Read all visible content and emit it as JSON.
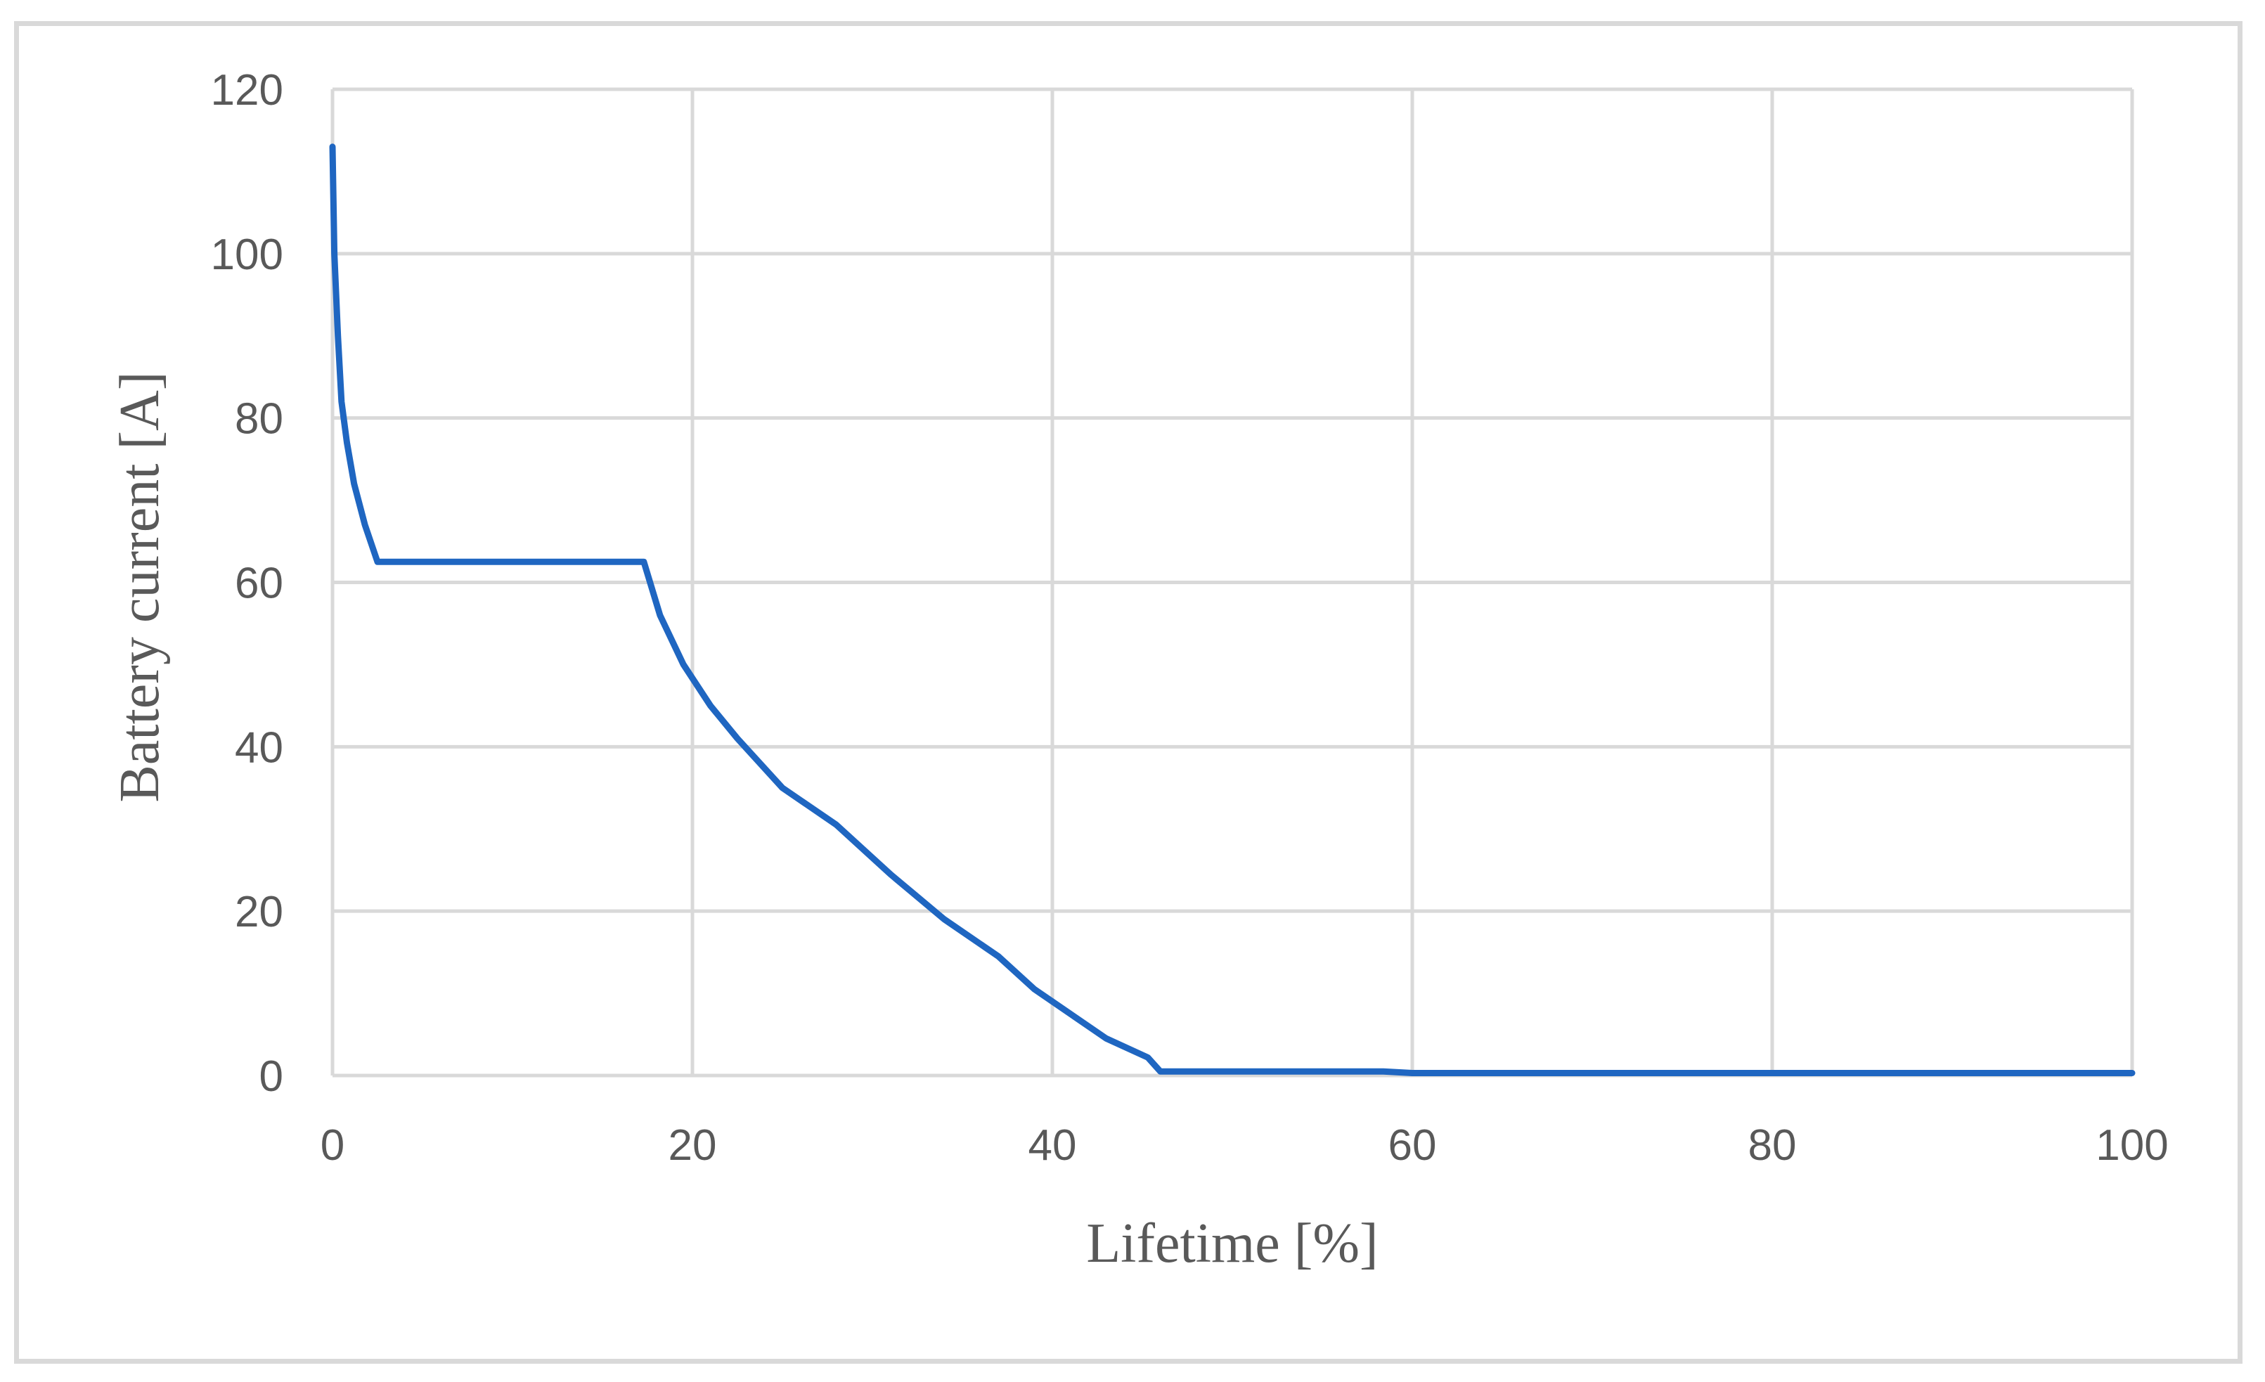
{
  "chart_data": {
    "type": "line",
    "title": "",
    "xlabel": "Lifetime [%]",
    "ylabel": "Battery current [A]",
    "xlim": [
      0,
      100
    ],
    "ylim": [
      0,
      120
    ],
    "x_ticks": [
      "0",
      "20",
      "40",
      "60",
      "80",
      "100"
    ],
    "y_ticks": [
      "0",
      "20",
      "40",
      "60",
      "80",
      "100",
      "120"
    ],
    "grid": true,
    "legend": "none",
    "colors": {
      "series": "#1f66c1",
      "grid": "#d9d9d9",
      "text": "#595959",
      "frame": "#d9d9d9"
    },
    "series": [
      {
        "x": [
          0,
          0.1,
          0.3,
          0.5,
          0.8,
          1.2,
          1.8,
          2.5,
          10,
          17.3,
          18.2,
          19.5,
          21,
          22.5,
          25,
          28,
          31,
          34,
          37,
          39,
          41,
          43,
          45.3,
          46,
          50,
          58.4,
          60,
          70,
          80,
          90,
          100
        ],
        "y": [
          113,
          100,
          90,
          82,
          77,
          72,
          67,
          62.5,
          62.5,
          62.5,
          56,
          50,
          45,
          41,
          35,
          30.5,
          24.5,
          19,
          14.5,
          10.5,
          7.5,
          4.5,
          2.2,
          0.5,
          0.5,
          0.5,
          0.3,
          0.3,
          0.3,
          0.3,
          0.3
        ]
      }
    ]
  }
}
